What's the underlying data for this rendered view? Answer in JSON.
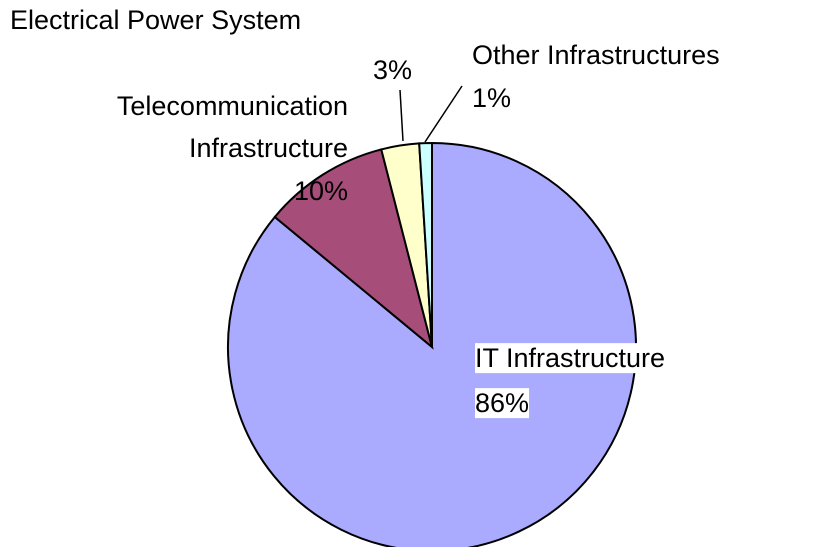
{
  "chart_data": {
    "type": "pie",
    "categories": [
      "IT Infrastructure",
      "Telecommunication Infrastructure",
      "Electrical Power System",
      "Other Infrastructures"
    ],
    "values": [
      86,
      10,
      3,
      1
    ],
    "value_labels": [
      "86%",
      "10%",
      "3%",
      "1%"
    ],
    "colors": [
      "#aaaaff",
      "#a64d79",
      "#ffffcc",
      "#ccffff"
    ]
  }
}
